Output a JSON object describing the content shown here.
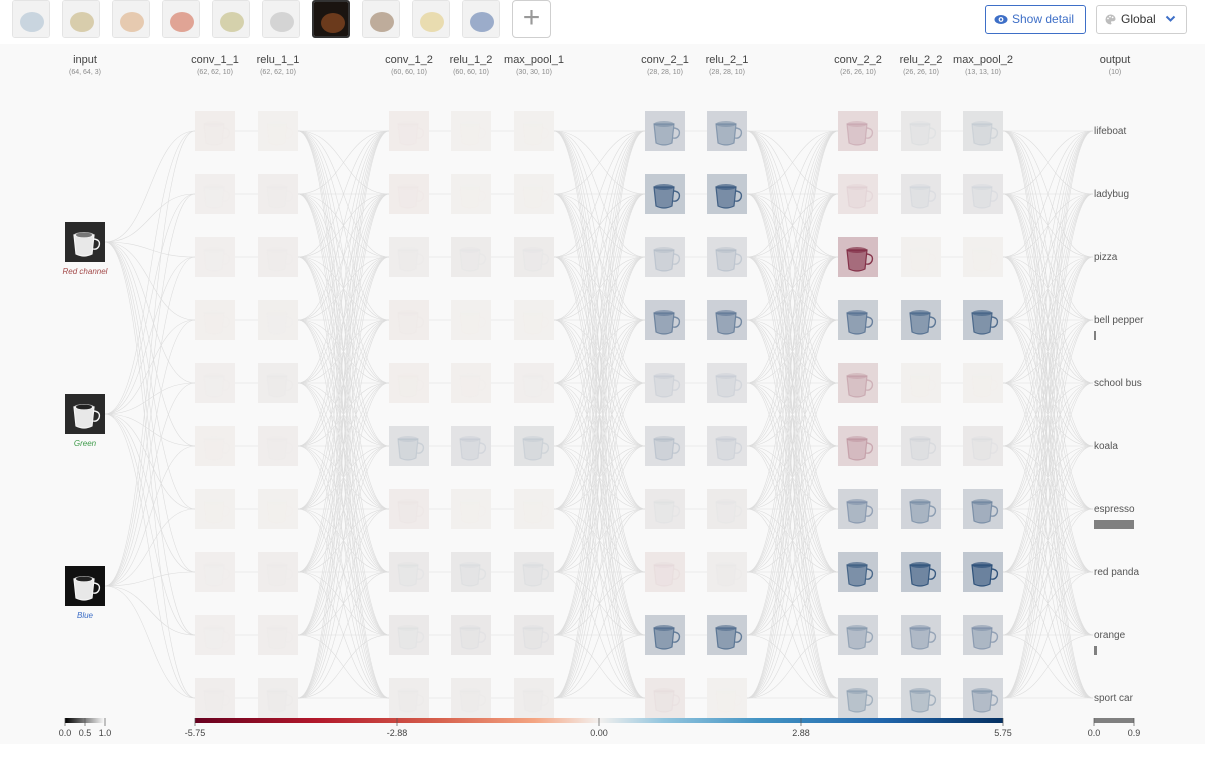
{
  "thumbnails": [
    {
      "name": "lifeboat-thumbnail",
      "color": "#9db4c6",
      "selected": false
    },
    {
      "name": "ladybug-thumbnail",
      "color": "#b9a56a",
      "selected": false
    },
    {
      "name": "pizza-thumbnail",
      "color": "#d3a070",
      "selected": false
    },
    {
      "name": "bell-pepper-thumbnail",
      "color": "#c85a40",
      "selected": false
    },
    {
      "name": "school-bus-thumbnail",
      "color": "#b3ad6a",
      "selected": false
    },
    {
      "name": "koala-thumbnail",
      "color": "#b2b2b2",
      "selected": false
    },
    {
      "name": "espresso-thumbnail",
      "color": "#6b3a1c",
      "selected": true
    },
    {
      "name": "red-panda-thumbnail",
      "color": "#8a6a4a",
      "selected": false
    },
    {
      "name": "orange-thumbnail",
      "color": "#d8c070",
      "selected": false
    },
    {
      "name": "sport-car-thumbnail",
      "color": "#4a6aa0",
      "selected": false
    }
  ],
  "add_button_label": "+",
  "show_detail_label": "Show detail",
  "global_label": "Global",
  "layers": [
    {
      "name": "input",
      "shape": "(64, 64, 3)"
    },
    {
      "name": "conv_1_1",
      "shape": "(62, 62, 10)"
    },
    {
      "name": "relu_1_1",
      "shape": "(62, 62, 10)"
    },
    {
      "name": "conv_1_2",
      "shape": "(60, 60, 10)"
    },
    {
      "name": "relu_1_2",
      "shape": "(60, 60, 10)"
    },
    {
      "name": "max_pool_1",
      "shape": "(30, 30, 10)"
    },
    {
      "name": "conv_2_1",
      "shape": "(28, 28, 10)"
    },
    {
      "name": "relu_2_1",
      "shape": "(28, 28, 10)"
    },
    {
      "name": "conv_2_2",
      "shape": "(26, 26, 10)"
    },
    {
      "name": "relu_2_2",
      "shape": "(26, 26, 10)"
    },
    {
      "name": "max_pool_2",
      "shape": "(13, 13, 10)"
    },
    {
      "name": "output",
      "shape": "(10)"
    }
  ],
  "input_channels": [
    {
      "label": "Red channel",
      "color": "#a34a4a"
    },
    {
      "label": "Green",
      "color": "#3e9b4a"
    },
    {
      "label": "Blue",
      "color": "#3e6fc7"
    }
  ],
  "feature_maps": {
    "conv_1_1": [
      -0.3,
      0.2,
      0.2,
      0.1,
      0.2,
      0.1,
      0.05,
      0.2,
      0.2,
      0.3
    ],
    "relu_1_1": [
      0.05,
      0.3,
      0.3,
      0.15,
      0.4,
      0.3,
      0.05,
      0.3,
      0.3,
      0.4
    ],
    "conv_1_2": [
      -0.4,
      -0.4,
      0.4,
      -0.3,
      -0.2,
      1.8,
      -0.5,
      0.8,
      0.8,
      0.4
    ],
    "relu_1_2": [
      0.05,
      0.05,
      0.6,
      0.05,
      0.1,
      1.5,
      0.05,
      1.0,
      0.9,
      0.4
    ],
    "max_pool_1": [
      0.05,
      0.05,
      0.6,
      0.05,
      0.2,
      1.6,
      0.05,
      1.0,
      0.9,
      0.4
    ],
    "conv_2_1": [
      3.3,
      4.6,
      2.0,
      3.8,
      1.5,
      2.0,
      0.8,
      -0.9,
      4.1,
      -0.8
    ],
    "relu_2_1": [
      3.3,
      4.6,
      2.0,
      3.8,
      1.5,
      1.5,
      0.6,
      0.4,
      4.1,
      0.05
    ],
    "conv_2_2": [
      -2.2,
      -1.2,
      -4.8,
      4.0,
      -2.4,
      -2.6,
      3.2,
      4.5,
      3.0,
      2.8
    ],
    "relu_2_2": [
      1.0,
      1.2,
      0.05,
      4.2,
      0.05,
      1.3,
      3.3,
      4.8,
      3.1,
      2.8
    ],
    "max_pool_2": [
      1.6,
      1.2,
      0.05,
      4.4,
      0.05,
      0.9,
      3.5,
      4.9,
      3.2,
      3.0
    ]
  },
  "outputs": [
    {
      "label": "lifeboat",
      "value": 0.0
    },
    {
      "label": "ladybug",
      "value": 0.0
    },
    {
      "label": "pizza",
      "value": 0.0
    },
    {
      "label": "bell pepper",
      "value": 0.02
    },
    {
      "label": "school bus",
      "value": 0.0
    },
    {
      "label": "koala",
      "value": 0.0
    },
    {
      "label": "espresso",
      "value": 0.8
    },
    {
      "label": "red panda",
      "value": 0.0
    },
    {
      "label": "orange",
      "value": 0.06
    },
    {
      "label": "sport car",
      "value": 0.0
    }
  ],
  "input_legend": {
    "ticks": [
      "0.0",
      "0.5",
      "1.0"
    ]
  },
  "main_legend": {
    "min": -5.75,
    "max": 5.75,
    "ticks": [
      "-5.75",
      "-2.88",
      "0.00",
      "2.88",
      "5.75"
    ],
    "neg_color": "#67001f",
    "mid_color": "#f3f0ee",
    "pos_color": "#053061"
  },
  "output_legend": {
    "ticks": [
      "0.0",
      "0.9"
    ]
  }
}
